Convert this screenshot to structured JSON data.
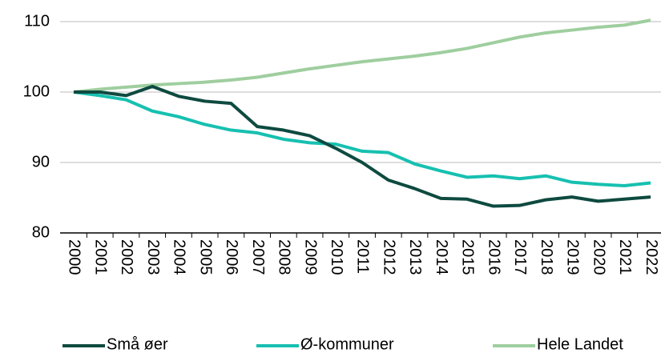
{
  "chart_data": {
    "type": "line",
    "categories": [
      "2000",
      "2001",
      "2002",
      "2003",
      "2004",
      "2005",
      "2006",
      "2007",
      "2008",
      "2009",
      "2010",
      "2011",
      "2012",
      "2013",
      "2014",
      "2015",
      "2016",
      "2017",
      "2018",
      "2019",
      "2020",
      "2021",
      "2022"
    ],
    "series": [
      {
        "name": "Små øer",
        "color": "#0e4a40",
        "values": [
          100,
          100.0,
          99.5,
          100.8,
          99.4,
          98.7,
          98.4,
          95.1,
          94.6,
          93.8,
          92.0,
          90.0,
          87.5,
          86.3,
          84.9,
          84.8,
          83.8,
          83.9,
          84.7,
          85.1,
          84.5,
          84.8,
          85.1
        ]
      },
      {
        "name": "Ø-kommuner",
        "color": "#17c0b0",
        "values": [
          100,
          99.5,
          98.9,
          97.3,
          96.5,
          95.4,
          94.6,
          94.2,
          93.3,
          92.8,
          92.6,
          91.6,
          91.4,
          89.8,
          88.8,
          87.9,
          88.1,
          87.7,
          88.1,
          87.2,
          86.9,
          86.7,
          87.1
        ]
      },
      {
        "name": "Hele Landet",
        "color": "#9fce9f",
        "values": [
          100,
          100.4,
          100.7,
          101.0,
          101.2,
          101.4,
          101.7,
          102.1,
          102.7,
          103.3,
          103.8,
          104.3,
          104.7,
          105.1,
          105.6,
          106.2,
          107.0,
          107.8,
          108.4,
          108.8,
          109.2,
          109.5,
          110.2
        ]
      }
    ],
    "ylim": [
      80,
      110
    ],
    "yticks": [
      80,
      90,
      100,
      110
    ],
    "grid": true,
    "legend": "bottom"
  }
}
